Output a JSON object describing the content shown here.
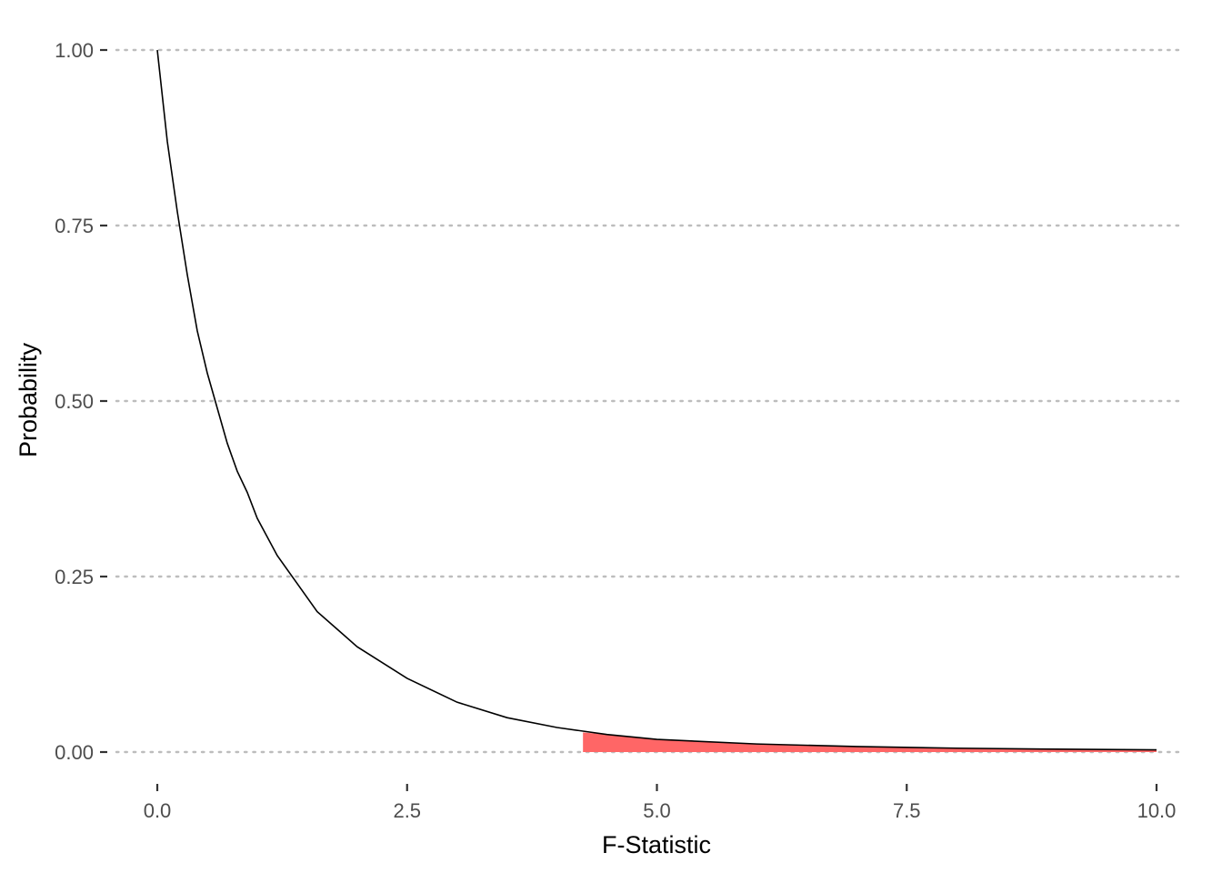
{
  "chart_data": {
    "type": "area",
    "title": "",
    "xlabel": "F-Statistic",
    "ylabel": "Probability",
    "xlim": [
      0,
      10
    ],
    "ylim": [
      0,
      1
    ],
    "x_ticks": [
      0,
      2.5,
      5,
      7.5,
      10
    ],
    "x_tick_labels": [
      "0.0",
      "2.5",
      "5.0",
      "7.5",
      "10.0"
    ],
    "y_ticks": [
      0,
      0.25,
      0.5,
      0.75,
      1
    ],
    "y_tick_labels": [
      "0.00",
      "0.25",
      "0.50",
      "0.75",
      "1.00"
    ],
    "grid": "horizontal dotted",
    "series": [
      {
        "type": "line",
        "color": "#000000",
        "x": [
          0,
          0.1,
          0.2,
          0.3,
          0.4,
          0.5,
          0.6,
          0.7,
          0.8,
          0.9,
          1.0,
          1.2,
          1.4,
          1.6,
          1.8,
          2.0,
          2.5,
          3.0,
          3.5,
          4.0,
          4.5,
          5.0,
          6.0,
          7.0,
          8.0,
          9.0,
          10.0
        ],
        "y": [
          1.0,
          0.87,
          0.77,
          0.68,
          0.6,
          0.54,
          0.49,
          0.44,
          0.4,
          0.37,
          0.333,
          0.28,
          0.24,
          0.2,
          0.175,
          0.15,
          0.105,
          0.071,
          0.049,
          0.035,
          0.025,
          0.018,
          0.0115,
          0.0078,
          0.0055,
          0.0041,
          0.0031
        ]
      },
      {
        "type": "area",
        "color": "#ff6666",
        "x": [
          4.26,
          4.5,
          5.0,
          5.5,
          6.0,
          6.5,
          7.0,
          7.5,
          8.0,
          8.5,
          9.0,
          9.5,
          10.0
        ],
        "y": [
          0.028,
          0.025,
          0.018,
          0.0145,
          0.0115,
          0.0095,
          0.0078,
          0.0066,
          0.0055,
          0.0047,
          0.0041,
          0.0036,
          0.0031
        ]
      }
    ]
  }
}
